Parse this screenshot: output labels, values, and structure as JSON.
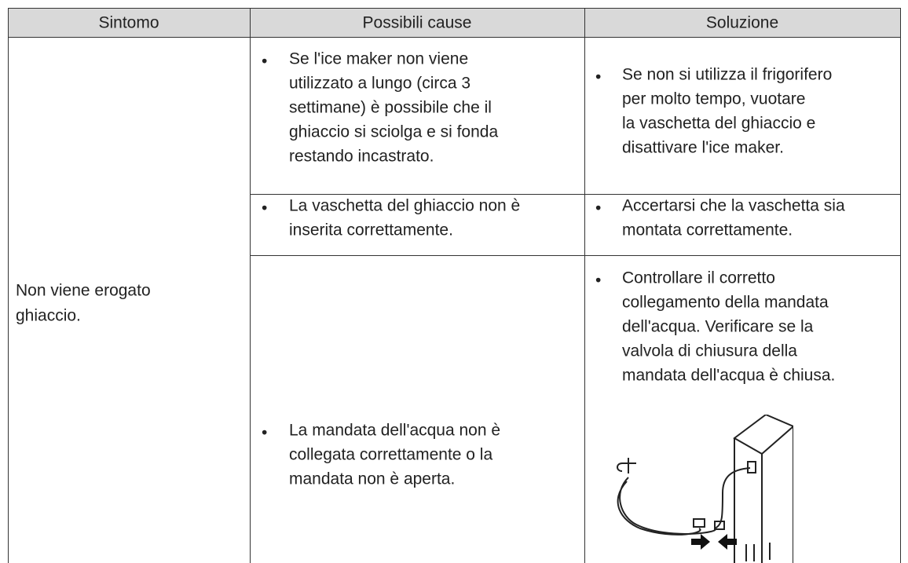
{
  "table": {
    "header": [
      "Sintomo",
      "Possibili cause",
      "Soluzione"
    ],
    "symptom": [
      "Non viene erogato",
      "ghiaccio."
    ],
    "rows": [
      {
        "cause": [
          "Se l'ice maker non viene",
          "utilizzato a lungo (circa 3",
          "settimane) è possibile che il",
          "ghiaccio si sciolga e si fonda",
          "restando incastrato."
        ],
        "solution": [
          "Se non si utilizza il frigorifero",
          "per molto tempo, vuotare",
          "la vaschetta del ghiaccio e",
          "disattivare l'ice maker."
        ]
      },
      {
        "cause": [
          "La vaschetta del ghiaccio non è",
          "inserita correttamente."
        ],
        "solution": [
          "Accertarsi che la vaschetta sia",
          "montata correttamente."
        ]
      },
      {
        "cause": [
          "La mandata dell'acqua non è",
          "collegata correttamente o la",
          "mandata non è aperta."
        ],
        "solution": [
          "Controllare il corretto",
          "collegamento della mandata",
          "dell'acqua. Verificare se la",
          "valvola di chiusura della",
          "mandata dell'acqua è chiusa."
        ]
      }
    ]
  }
}
